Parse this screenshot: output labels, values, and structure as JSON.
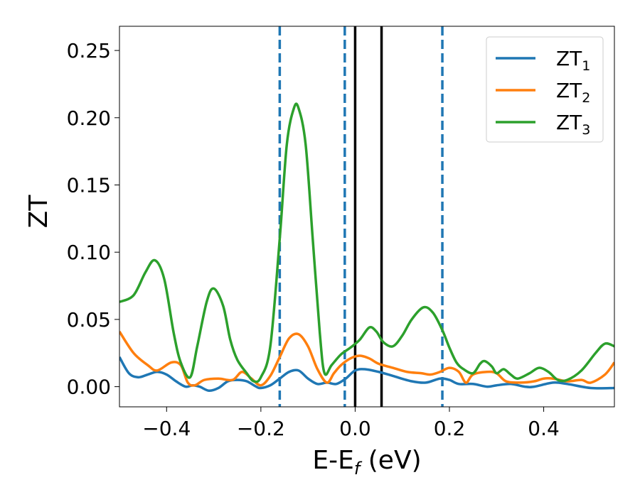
{
  "chart_data": {
    "type": "line",
    "xlabel_main": "E-E",
    "xlabel_sub": "f",
    "xlabel_unit": " (eV)",
    "ylabel": "ZT",
    "xlim": [
      -0.5,
      0.55
    ],
    "ylim": [
      -0.015,
      0.268
    ],
    "x_ticks": [
      -0.4,
      -0.2,
      0.0,
      0.2,
      0.4
    ],
    "x_tick_labels": [
      "−0.4",
      "−0.2",
      "0.0",
      "0.2",
      "0.4"
    ],
    "y_ticks": [
      0.0,
      0.05,
      0.1,
      0.15,
      0.2,
      0.25
    ],
    "y_tick_labels": [
      "0.00",
      "0.05",
      "0.10",
      "0.15",
      "0.20",
      "0.25"
    ],
    "legend_position": "top-right",
    "vertical_lines": [
      {
        "x": -0.16,
        "style": "dashed",
        "color": "#1f77b4"
      },
      {
        "x": -0.022,
        "style": "dashed",
        "color": "#1f77b4"
      },
      {
        "x": 0.0,
        "style": "solid",
        "color": "#000000"
      },
      {
        "x": 0.056,
        "style": "solid",
        "color": "#000000"
      },
      {
        "x": 0.185,
        "style": "dashed",
        "color": "#1f77b4"
      }
    ],
    "series": [
      {
        "name_main": "ZT",
        "name_sub": "1",
        "color": "#1f77b4",
        "points": [
          [
            -0.5,
            0.022
          ],
          [
            -0.48,
            0.01
          ],
          [
            -0.46,
            0.007
          ],
          [
            -0.44,
            0.009
          ],
          [
            -0.42,
            0.011
          ],
          [
            -0.4,
            0.009
          ],
          [
            -0.38,
            0.004
          ],
          [
            -0.36,
            0.0
          ],
          [
            -0.345,
            0.001
          ],
          [
            -0.33,
            0.0
          ],
          [
            -0.31,
            -0.003
          ],
          [
            -0.29,
            -0.001
          ],
          [
            -0.27,
            0.004
          ],
          [
            -0.25,
            0.005
          ],
          [
            -0.23,
            0.004
          ],
          [
            -0.21,
            0.0
          ],
          [
            -0.2,
            -0.001
          ],
          [
            -0.18,
            0.001
          ],
          [
            -0.16,
            0.006
          ],
          [
            -0.14,
            0.011
          ],
          [
            -0.12,
            0.012
          ],
          [
            -0.1,
            0.006
          ],
          [
            -0.08,
            0.002
          ],
          [
            -0.06,
            0.003
          ],
          [
            -0.04,
            0.002
          ],
          [
            -0.02,
            0.006
          ],
          [
            0.0,
            0.012
          ],
          [
            0.02,
            0.013
          ],
          [
            0.05,
            0.011
          ],
          [
            0.08,
            0.008
          ],
          [
            0.12,
            0.004
          ],
          [
            0.15,
            0.003
          ],
          [
            0.18,
            0.006
          ],
          [
            0.2,
            0.005
          ],
          [
            0.22,
            0.002
          ],
          [
            0.25,
            0.002
          ],
          [
            0.28,
            0.0
          ],
          [
            0.3,
            0.001
          ],
          [
            0.33,
            0.002
          ],
          [
            0.36,
            0.0
          ],
          [
            0.38,
            0.0
          ],
          [
            0.42,
            0.003
          ],
          [
            0.45,
            0.002
          ],
          [
            0.5,
            -0.001
          ],
          [
            0.55,
            -0.001
          ]
        ]
      },
      {
        "name_main": "ZT",
        "name_sub": "2",
        "color": "#ff7f0e",
        "points": [
          [
            -0.5,
            0.041
          ],
          [
            -0.47,
            0.025
          ],
          [
            -0.44,
            0.016
          ],
          [
            -0.42,
            0.012
          ],
          [
            -0.39,
            0.018
          ],
          [
            -0.37,
            0.016
          ],
          [
            -0.355,
            0.003
          ],
          [
            -0.34,
            0.001
          ],
          [
            -0.32,
            0.005
          ],
          [
            -0.29,
            0.006
          ],
          [
            -0.26,
            0.005
          ],
          [
            -0.24,
            0.011
          ],
          [
            -0.22,
            0.006
          ],
          [
            -0.2,
            0.001
          ],
          [
            -0.18,
            0.008
          ],
          [
            -0.16,
            0.022
          ],
          [
            -0.14,
            0.036
          ],
          [
            -0.12,
            0.039
          ],
          [
            -0.1,
            0.03
          ],
          [
            -0.08,
            0.013
          ],
          [
            -0.06,
            0.003
          ],
          [
            -0.045,
            0.01
          ],
          [
            -0.03,
            0.016
          ],
          [
            -0.01,
            0.021
          ],
          [
            0.01,
            0.023
          ],
          [
            0.03,
            0.021
          ],
          [
            0.05,
            0.017
          ],
          [
            0.08,
            0.014
          ],
          [
            0.11,
            0.011
          ],
          [
            0.14,
            0.01
          ],
          [
            0.16,
            0.009
          ],
          [
            0.18,
            0.011
          ],
          [
            0.2,
            0.014
          ],
          [
            0.22,
            0.011
          ],
          [
            0.235,
            0.003
          ],
          [
            0.25,
            0.009
          ],
          [
            0.28,
            0.011
          ],
          [
            0.3,
            0.01
          ],
          [
            0.32,
            0.004
          ],
          [
            0.35,
            0.003
          ],
          [
            0.38,
            0.004
          ],
          [
            0.4,
            0.006
          ],
          [
            0.42,
            0.006
          ],
          [
            0.45,
            0.004
          ],
          [
            0.48,
            0.005
          ],
          [
            0.5,
            0.003
          ],
          [
            0.53,
            0.009
          ],
          [
            0.55,
            0.018
          ]
        ]
      },
      {
        "name_main": "ZT",
        "name_sub": "3",
        "color": "#2ca02c",
        "points": [
          [
            -0.5,
            0.063
          ],
          [
            -0.47,
            0.068
          ],
          [
            -0.445,
            0.085
          ],
          [
            -0.425,
            0.094
          ],
          [
            -0.405,
            0.08
          ],
          [
            -0.385,
            0.04
          ],
          [
            -0.37,
            0.018
          ],
          [
            -0.35,
            0.007
          ],
          [
            -0.335,
            0.03
          ],
          [
            -0.315,
            0.063
          ],
          [
            -0.3,
            0.073
          ],
          [
            -0.28,
            0.06
          ],
          [
            -0.265,
            0.035
          ],
          [
            -0.25,
            0.02
          ],
          [
            -0.23,
            0.01
          ],
          [
            -0.215,
            0.004
          ],
          [
            -0.2,
            0.007
          ],
          [
            -0.18,
            0.03
          ],
          [
            -0.16,
            0.11
          ],
          [
            -0.145,
            0.18
          ],
          [
            -0.13,
            0.207
          ],
          [
            -0.12,
            0.207
          ],
          [
            -0.105,
            0.18
          ],
          [
            -0.09,
            0.11
          ],
          [
            -0.075,
            0.04
          ],
          [
            -0.065,
            0.01
          ],
          [
            -0.05,
            0.016
          ],
          [
            -0.03,
            0.024
          ],
          [
            -0.01,
            0.029
          ],
          [
            0.01,
            0.035
          ],
          [
            0.03,
            0.044
          ],
          [
            0.045,
            0.041
          ],
          [
            0.06,
            0.033
          ],
          [
            0.08,
            0.03
          ],
          [
            0.1,
            0.038
          ],
          [
            0.12,
            0.05
          ],
          [
            0.145,
            0.059
          ],
          [
            0.165,
            0.055
          ],
          [
            0.185,
            0.042
          ],
          [
            0.2,
            0.029
          ],
          [
            0.215,
            0.018
          ],
          [
            0.23,
            0.013
          ],
          [
            0.25,
            0.01
          ],
          [
            0.265,
            0.017
          ],
          [
            0.275,
            0.019
          ],
          [
            0.29,
            0.015
          ],
          [
            0.3,
            0.01
          ],
          [
            0.315,
            0.013
          ],
          [
            0.33,
            0.009
          ],
          [
            0.345,
            0.006
          ],
          [
            0.37,
            0.01
          ],
          [
            0.39,
            0.014
          ],
          [
            0.41,
            0.011
          ],
          [
            0.43,
            0.005
          ],
          [
            0.45,
            0.005
          ],
          [
            0.48,
            0.012
          ],
          [
            0.51,
            0.025
          ],
          [
            0.53,
            0.032
          ],
          [
            0.55,
            0.03
          ]
        ]
      }
    ]
  }
}
